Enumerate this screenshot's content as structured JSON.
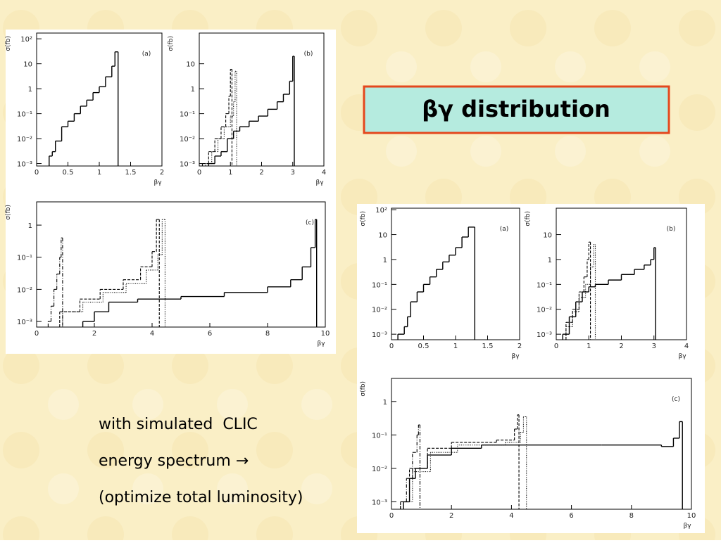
{
  "title": "βγ distribution",
  "text_lines": [
    "with simulated  CLIC",
    "energy spectrum →",
    "(optimize total luminosity)"
  ],
  "chart_data": [
    {
      "type": "histogram",
      "label": "(a)",
      "xlabel": "βγ",
      "ylabel": "σ(fb)",
      "log_y": true,
      "xlim": [
        0,
        2
      ],
      "xticks": [
        0,
        0.5,
        1,
        1.5,
        2
      ],
      "ylim": [
        0.0008,
        170
      ],
      "yticks": [
        {
          "value": 100,
          "label": "10²"
        },
        10,
        1,
        {
          "value": 0.1,
          "label": "10⁻¹"
        },
        {
          "value": 0.01,
          "label": "10⁻²"
        },
        {
          "value": 0.001,
          "label": "10⁻³"
        }
      ],
      "series": [
        {
          "style": "solid",
          "color": "#000000",
          "bins": [
            0.2,
            0.25,
            0.3,
            0.4,
            0.5,
            0.6,
            0.7,
            0.8,
            0.9,
            1.0,
            1.1,
            1.2,
            1.25,
            1.3
          ],
          "values": [
            0.002,
            0.003,
            0.008,
            0.03,
            0.05,
            0.1,
            0.2,
            0.35,
            0.7,
            1.2,
            3,
            8,
            30
          ]
        }
      ]
    },
    {
      "type": "histogram",
      "label": "(b)",
      "xlabel": "βγ",
      "ylabel": "σ(fb)",
      "log_y": true,
      "xlim": [
        0,
        4
      ],
      "xticks": [
        0,
        1,
        2,
        3,
        4
      ],
      "ylim": [
        0.0008,
        170
      ],
      "yticks": [
        10,
        1,
        {
          "value": 0.1,
          "label": "10⁻¹"
        },
        {
          "value": 0.01,
          "label": "10⁻²"
        },
        {
          "value": 0.001,
          "label": "10⁻³"
        }
      ],
      "series": [
        {
          "style": "solid",
          "color": "#000000",
          "bins": [
            0.3,
            0.5,
            0.7,
            0.9,
            1.1,
            1.3,
            1.6,
            1.9,
            2.2,
            2.5,
            2.7,
            2.9,
            3.0,
            3.05
          ],
          "values": [
            0.001,
            0.002,
            0.003,
            0.01,
            0.02,
            0.03,
            0.05,
            0.08,
            0.15,
            0.3,
            0.6,
            2,
            20
          ]
        },
        {
          "style": "dashed",
          "color": "#000000",
          "bins": [
            0.1,
            0.3,
            0.5,
            0.7,
            0.85,
            0.95,
            1.0,
            1.05
          ],
          "values": [
            0.001,
            0.003,
            0.01,
            0.03,
            0.1,
            0.5,
            6
          ]
        },
        {
          "style": "dotted",
          "color": "#000000",
          "bins": [
            0.2,
            0.4,
            0.6,
            0.8,
            1.0,
            1.1,
            1.15,
            1.2
          ],
          "values": [
            0.001,
            0.003,
            0.01,
            0.03,
            0.08,
            0.3,
            5
          ]
        }
      ]
    },
    {
      "type": "histogram",
      "label": "(c)",
      "xlabel": "βγ",
      "ylabel": "σ(fb)",
      "log_y": true,
      "xlim": [
        0,
        10
      ],
      "xticks": [
        0,
        2,
        4,
        6,
        8,
        10
      ],
      "ylim": [
        0.00067,
        5.3
      ],
      "yticks": [
        1,
        {
          "value": 0.1,
          "label": "10⁻¹"
        },
        {
          "value": 0.01,
          "label": "10⁻²"
        },
        {
          "value": 0.001,
          "label": "10⁻³"
        }
      ],
      "series": [
        {
          "style": "dashdot",
          "color": "#000000",
          "bins": [
            0.4,
            0.5,
            0.6,
            0.7,
            0.8,
            0.85,
            0.9
          ],
          "values": [
            0.001,
            0.003,
            0.01,
            0.03,
            0.1,
            0.4
          ]
        },
        {
          "style": "dashed",
          "color": "#000000",
          "bins": [
            0.8,
            1.5,
            2.2,
            3.0,
            3.6,
            4.0,
            4.15,
            4.25
          ],
          "values": [
            0.002,
            0.005,
            0.01,
            0.02,
            0.05,
            0.15,
            1.5
          ]
        },
        {
          "style": "dotted",
          "color": "#000000",
          "bins": [
            0.9,
            1.6,
            2.3,
            3.1,
            3.8,
            4.2,
            4.35,
            4.45
          ],
          "values": [
            0.002,
            0.004,
            0.008,
            0.015,
            0.04,
            0.12,
            1.5
          ]
        },
        {
          "style": "solid",
          "color": "#000000",
          "bins": [
            1.6,
            2,
            2.5,
            3.5,
            5,
            6.5,
            8,
            8.8,
            9.2,
            9.5,
            9.65,
            9.7
          ],
          "values": [
            0.001,
            0.002,
            0.004,
            0.005,
            0.006,
            0.008,
            0.012,
            0.02,
            0.05,
            0.2,
            1.5
          ]
        }
      ]
    },
    {
      "type": "histogram",
      "label": "(a)",
      "xlabel": "βγ",
      "ylabel": "σ(fb)",
      "log_y": true,
      "xlim": [
        0,
        2
      ],
      "xticks": [
        0,
        0.5,
        1,
        1.5,
        2
      ],
      "ylim": [
        0.0006,
        115
      ],
      "yticks": [
        {
          "value": 100,
          "label": "10²"
        },
        10,
        1,
        {
          "value": 0.1,
          "label": "10⁻¹"
        },
        {
          "value": 0.01,
          "label": "10⁻²"
        },
        {
          "value": 0.001,
          "label": "10⁻³"
        }
      ],
      "series": [
        {
          "style": "solid",
          "color": "#000000",
          "bins": [
            0.1,
            0.2,
            0.25,
            0.3,
            0.4,
            0.5,
            0.6,
            0.7,
            0.8,
            0.9,
            1.0,
            1.1,
            1.2,
            1.3
          ],
          "values": [
            0.001,
            0.002,
            0.005,
            0.02,
            0.05,
            0.1,
            0.2,
            0.4,
            0.8,
            1.5,
            3,
            8,
            20
          ]
        }
      ]
    },
    {
      "type": "histogram",
      "label": "(b)",
      "xlabel": "βγ",
      "ylabel": "σ(fb)",
      "log_y": true,
      "xlim": [
        0,
        4
      ],
      "xticks": [
        0,
        1,
        2,
        3,
        4
      ],
      "ylim": [
        0.0006,
        115
      ],
      "yticks": [
        10,
        1,
        {
          "value": 0.1,
          "label": "10⁻¹"
        },
        {
          "value": 0.01,
          "label": "10⁻²"
        },
        {
          "value": 0.001,
          "label": "10⁻³"
        }
      ],
      "series": [
        {
          "style": "solid",
          "color": "#000000",
          "bins": [
            0.2,
            0.4,
            0.6,
            0.8,
            1.0,
            1.2,
            1.6,
            2.0,
            2.4,
            2.7,
            2.9,
            3.0,
            3.05
          ],
          "values": [
            0.001,
            0.005,
            0.02,
            0.05,
            0.08,
            0.1,
            0.15,
            0.25,
            0.4,
            0.6,
            1,
            3
          ]
        },
        {
          "style": "dashed",
          "color": "#000000",
          "bins": [
            0.3,
            0.5,
            0.7,
            0.85,
            0.95,
            1.0,
            1.05
          ],
          "values": [
            0.003,
            0.01,
            0.05,
            0.2,
            1,
            5
          ]
        },
        {
          "style": "dotted",
          "color": "#000000",
          "bins": [
            0.3,
            0.5,
            0.7,
            0.9,
            1.05,
            1.15,
            1.2
          ],
          "values": [
            0.002,
            0.008,
            0.03,
            0.1,
            0.5,
            4
          ]
        }
      ]
    },
    {
      "type": "histogram",
      "label": "(c)",
      "xlabel": "βγ",
      "ylabel": "σ(fb)",
      "log_y": true,
      "xlim": [
        0,
        10
      ],
      "xticks": [
        0,
        2,
        4,
        6,
        8,
        10
      ],
      "ylim": [
        0.0006,
        4.9
      ],
      "yticks": [
        1,
        {
          "value": 0.1,
          "label": "10⁻¹"
        },
        {
          "value": 0.01,
          "label": "10⁻²"
        },
        {
          "value": 0.001,
          "label": "10⁻³"
        }
      ],
      "series": [
        {
          "style": "solid",
          "color": "#000000",
          "bins": [
            0.4,
            0.6,
            0.8,
            1.2,
            2,
            3,
            5,
            7,
            9,
            9.4,
            9.6,
            9.7
          ],
          "values": [
            0.001,
            0.005,
            0.01,
            0.025,
            0.04,
            0.05,
            0.05,
            0.05,
            0.045,
            0.08,
            0.25
          ]
        },
        {
          "style": "dashdot",
          "color": "#000000",
          "bins": [
            0.3,
            0.5,
            0.7,
            0.85,
            0.9,
            0.95
          ],
          "values": [
            0.001,
            0.005,
            0.03,
            0.1,
            0.2
          ]
        },
        {
          "style": "dashed",
          "color": "#000000",
          "bins": [
            0.3,
            0.6,
            1.2,
            2,
            3.5,
            4.1,
            4.2,
            4.25
          ],
          "values": [
            0.001,
            0.01,
            0.04,
            0.06,
            0.07,
            0.15,
            0.4
          ]
        },
        {
          "style": "dotted",
          "color": "#000000",
          "bins": [
            0.4,
            0.7,
            1.3,
            2.2,
            3.8,
            4.3,
            4.4,
            4.5
          ],
          "values": [
            0.001,
            0.008,
            0.03,
            0.05,
            0.06,
            0.12,
            0.35
          ]
        }
      ]
    }
  ]
}
